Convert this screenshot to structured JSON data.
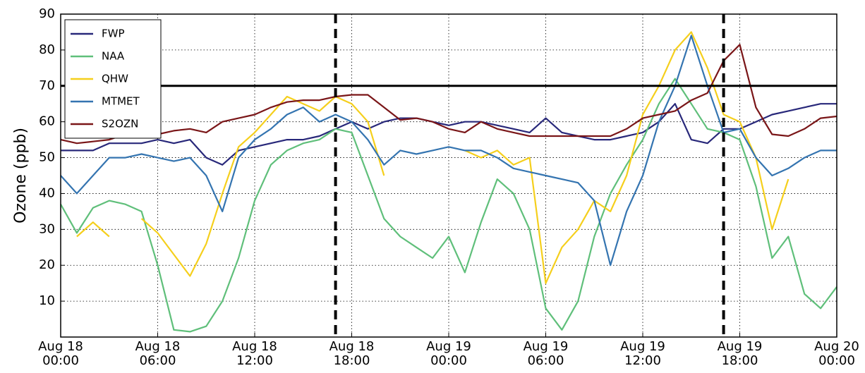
{
  "chart_data": {
    "type": "line",
    "y_label": "Ozone (ppb)",
    "x": [
      0,
      1,
      2,
      3,
      4,
      5,
      6,
      7,
      8,
      9,
      10,
      11,
      12,
      13,
      14,
      15,
      16,
      17,
      18,
      19,
      20,
      21,
      22,
      23,
      24,
      25,
      26,
      27,
      28,
      29,
      30,
      31,
      32,
      33,
      34,
      35,
      36,
      37,
      38,
      39,
      40,
      41,
      42,
      43,
      44,
      45,
      46,
      47,
      48
    ],
    "xlim": [
      0,
      48
    ],
    "xticks": [
      {
        "value": 0,
        "label": "Aug 18\n00:00"
      },
      {
        "value": 6,
        "label": "Aug 18\n06:00"
      },
      {
        "value": 12,
        "label": "Aug 18\n12:00"
      },
      {
        "value": 18,
        "label": "Aug 18\n18:00"
      },
      {
        "value": 24,
        "label": "Aug 19\n00:00"
      },
      {
        "value": 30,
        "label": "Aug 19\n06:00"
      },
      {
        "value": 36,
        "label": "Aug 19\n12:00"
      },
      {
        "value": 42,
        "label": "Aug 19\n18:00"
      },
      {
        "value": 48,
        "label": "Aug 20\n00:00"
      }
    ],
    "ylim": [
      0,
      90
    ],
    "yticks": [
      10,
      20,
      30,
      40,
      50,
      60,
      70,
      80,
      90
    ],
    "grid": true,
    "legend": "upper left",
    "hlines": [
      70
    ],
    "vlines": [
      17,
      41
    ],
    "series": [
      {
        "name": "FWP",
        "color": "#28287a",
        "values": [
          52,
          52,
          52,
          54,
          54,
          54,
          55,
          54,
          55,
          50,
          48,
          52,
          53,
          54,
          55,
          55,
          56,
          58,
          60,
          58,
          60,
          61,
          61,
          60,
          59,
          60,
          60,
          59,
          58,
          57,
          61,
          57,
          56,
          55,
          55,
          56,
          57,
          60,
          65,
          55,
          54,
          58,
          58,
          60,
          62,
          63,
          64,
          65,
          65
        ]
      },
      {
        "name": "NAA",
        "color": "#5fbf7a",
        "values": [
          37,
          29,
          36,
          38,
          37,
          35,
          20,
          2,
          1.5,
          3,
          10,
          22,
          38,
          48,
          52,
          54,
          55,
          58,
          57,
          45,
          33,
          28,
          25,
          22,
          28,
          18,
          32,
          44,
          40,
          30,
          8,
          2,
          10,
          28,
          40,
          48,
          55,
          65,
          72,
          65,
          58,
          57,
          55,
          42,
          22,
          28,
          12,
          8,
          14
        ]
      },
      {
        "name": "QHW",
        "color": "#f5cf1c",
        "values": [
          null,
          28,
          32,
          28,
          null,
          33,
          29,
          23,
          17,
          26,
          40,
          53,
          57,
          62,
          67,
          65,
          63,
          67,
          65,
          60,
          45,
          null,
          null,
          null,
          null,
          52,
          50,
          52,
          48,
          50,
          15,
          25,
          30,
          38,
          35,
          45,
          62,
          70,
          80,
          85,
          75,
          62,
          60,
          50,
          30,
          44,
          null,
          null,
          null
        ]
      },
      {
        "name": "MTMET",
        "color": "#3474b0",
        "values": [
          45,
          40,
          45,
          50,
          50,
          51,
          50,
          49,
          50,
          45,
          35,
          50,
          55,
          58,
          62,
          64,
          60,
          62,
          60,
          55,
          48,
          52,
          51,
          52,
          53,
          52,
          52,
          50,
          47,
          46,
          45,
          44,
          43,
          38,
          20,
          35,
          45,
          60,
          70,
          84,
          70,
          57,
          58,
          50,
          45,
          47,
          50,
          52,
          52
        ]
      },
      {
        "name": "S2OZN",
        "color": "#7a1618",
        "values": [
          55,
          54,
          54.5,
          55,
          56.5,
          56.5,
          56.5,
          57.5,
          58,
          57,
          60,
          61,
          62,
          64,
          65.5,
          66,
          66,
          67,
          67.5,
          67.5,
          64,
          60.5,
          61,
          60,
          58,
          57,
          60,
          58,
          57,
          56,
          56,
          56,
          56,
          56,
          56,
          58,
          61,
          62,
          63,
          66,
          68,
          77,
          81.5,
          64,
          56.5,
          56,
          58,
          61,
          61.5
        ]
      }
    ]
  }
}
